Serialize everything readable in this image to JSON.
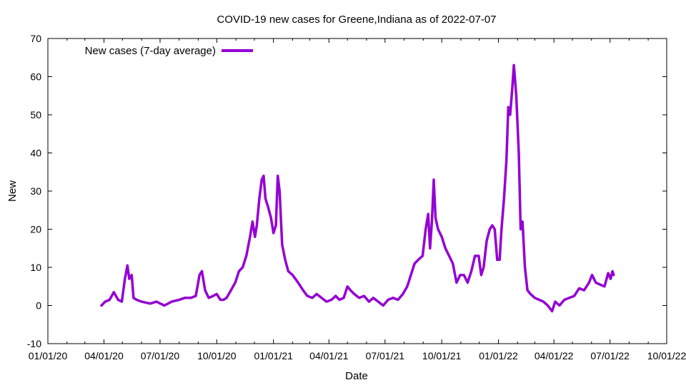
{
  "chart_data": {
    "type": "line",
    "title": "COVID-19 new cases for Greene,Indiana as of 2022-07-07",
    "xlabel": "Date",
    "ylabel": "New",
    "ylim": [
      -10,
      70
    ],
    "yticks": [
      -10,
      0,
      10,
      20,
      30,
      40,
      50,
      60,
      70
    ],
    "xticks": [
      "01/01/20",
      "04/01/20",
      "07/01/20",
      "10/01/20",
      "01/01/21",
      "04/01/21",
      "07/01/21",
      "10/01/21",
      "01/01/22",
      "04/01/22",
      "07/01/22",
      "10/01/22"
    ],
    "legend_position": "top-left",
    "series": [
      {
        "name": "New cases (7-day average)",
        "color": "#9400d3",
        "points": [
          [
            "2020-03-28",
            0
          ],
          [
            "2020-04-03",
            1
          ],
          [
            "2020-04-10",
            1.5
          ],
          [
            "2020-04-17",
            3.5
          ],
          [
            "2020-04-24",
            1.5
          ],
          [
            "2020-04-30",
            1
          ],
          [
            "2020-05-05",
            7
          ],
          [
            "2020-05-09",
            10.5
          ],
          [
            "2020-05-12",
            7
          ],
          [
            "2020-05-16",
            8
          ],
          [
            "2020-05-19",
            2
          ],
          [
            "2020-05-24",
            1.5
          ],
          [
            "2020-06-01",
            1
          ],
          [
            "2020-06-15",
            0.5
          ],
          [
            "2020-06-25",
            1
          ],
          [
            "2020-07-08",
            0
          ],
          [
            "2020-07-20",
            1
          ],
          [
            "2020-08-01",
            1.5
          ],
          [
            "2020-08-10",
            2
          ],
          [
            "2020-08-20",
            2
          ],
          [
            "2020-08-28",
            2.5
          ],
          [
            "2020-09-03",
            8
          ],
          [
            "2020-09-07",
            9
          ],
          [
            "2020-09-12",
            4
          ],
          [
            "2020-09-18",
            2
          ],
          [
            "2020-09-25",
            2.5
          ],
          [
            "2020-10-01",
            3
          ],
          [
            "2020-10-07",
            1.5
          ],
          [
            "2020-10-12",
            1.5
          ],
          [
            "2020-10-17",
            2
          ],
          [
            "2020-10-24",
            4
          ],
          [
            "2020-10-31",
            6
          ],
          [
            "2020-11-06",
            9
          ],
          [
            "2020-11-12",
            10
          ],
          [
            "2020-11-18",
            13
          ],
          [
            "2020-11-24",
            18
          ],
          [
            "2020-11-28",
            22
          ],
          [
            "2020-12-02",
            18
          ],
          [
            "2020-12-05",
            21
          ],
          [
            "2020-12-09",
            28
          ],
          [
            "2020-12-13",
            33
          ],
          [
            "2020-12-16",
            34
          ],
          [
            "2020-12-19",
            28
          ],
          [
            "2020-12-23",
            26
          ],
          [
            "2020-12-28",
            23
          ],
          [
            "2021-01-01",
            19
          ],
          [
            "2021-01-05",
            21
          ],
          [
            "2021-01-08",
            34
          ],
          [
            "2021-01-11",
            30
          ],
          [
            "2021-01-15",
            16
          ],
          [
            "2021-01-20",
            12
          ],
          [
            "2021-01-25",
            9
          ],
          [
            "2021-02-01",
            8
          ],
          [
            "2021-02-10",
            6
          ],
          [
            "2021-02-18",
            4
          ],
          [
            "2021-02-25",
            2.5
          ],
          [
            "2021-03-05",
            2
          ],
          [
            "2021-03-12",
            3
          ],
          [
            "2021-03-20",
            2
          ],
          [
            "2021-03-28",
            1
          ],
          [
            "2021-04-05",
            1.5
          ],
          [
            "2021-04-12",
            2.5
          ],
          [
            "2021-04-18",
            1.5
          ],
          [
            "2021-04-25",
            2
          ],
          [
            "2021-05-01",
            5
          ],
          [
            "2021-05-06",
            4
          ],
          [
            "2021-05-12",
            3
          ],
          [
            "2021-05-20",
            2
          ],
          [
            "2021-05-28",
            2.5
          ],
          [
            "2021-06-05",
            1
          ],
          [
            "2021-06-12",
            2
          ],
          [
            "2021-06-20",
            1
          ],
          [
            "2021-06-28",
            0
          ],
          [
            "2021-07-06",
            1.5
          ],
          [
            "2021-07-14",
            2
          ],
          [
            "2021-07-22",
            1.5
          ],
          [
            "2021-07-30",
            3
          ],
          [
            "2021-08-06",
            5
          ],
          [
            "2021-08-12",
            8
          ],
          [
            "2021-08-18",
            11
          ],
          [
            "2021-08-24",
            12
          ],
          [
            "2021-08-31",
            13
          ],
          [
            "2021-09-05",
            20
          ],
          [
            "2021-09-09",
            24
          ],
          [
            "2021-09-12",
            15
          ],
          [
            "2021-09-15",
            22
          ],
          [
            "2021-09-18",
            33
          ],
          [
            "2021-09-21",
            23
          ],
          [
            "2021-09-25",
            20
          ],
          [
            "2021-10-01",
            18
          ],
          [
            "2021-10-07",
            15
          ],
          [
            "2021-10-13",
            13
          ],
          [
            "2021-10-19",
            11
          ],
          [
            "2021-10-25",
            6
          ],
          [
            "2021-10-31",
            8
          ],
          [
            "2021-11-06",
            8
          ],
          [
            "2021-11-12",
            6
          ],
          [
            "2021-11-18",
            9
          ],
          [
            "2021-11-24",
            13
          ],
          [
            "2021-11-30",
            13
          ],
          [
            "2021-12-04",
            8
          ],
          [
            "2021-12-08",
            10
          ],
          [
            "2021-12-13",
            17
          ],
          [
            "2021-12-18",
            20
          ],
          [
            "2021-12-22",
            21
          ],
          [
            "2021-12-26",
            20
          ],
          [
            "2021-12-30",
            12
          ],
          [
            "2022-01-03",
            12
          ],
          [
            "2022-01-06",
            20
          ],
          [
            "2022-01-10",
            28
          ],
          [
            "2022-01-14",
            38
          ],
          [
            "2022-01-17",
            52
          ],
          [
            "2022-01-20",
            50
          ],
          [
            "2022-01-23",
            56
          ],
          [
            "2022-01-26",
            63
          ],
          [
            "2022-01-30",
            55
          ],
          [
            "2022-02-03",
            40
          ],
          [
            "2022-02-06",
            20
          ],
          [
            "2022-02-09",
            22
          ],
          [
            "2022-02-13",
            10
          ],
          [
            "2022-02-17",
            4
          ],
          [
            "2022-02-22",
            3
          ],
          [
            "2022-03-01",
            2
          ],
          [
            "2022-03-08",
            1.5
          ],
          [
            "2022-03-15",
            1
          ],
          [
            "2022-03-22",
            0
          ],
          [
            "2022-03-29",
            -1.5
          ],
          [
            "2022-04-03",
            1
          ],
          [
            "2022-04-10",
            0
          ],
          [
            "2022-04-18",
            1.5
          ],
          [
            "2022-04-26",
            2
          ],
          [
            "2022-05-04",
            2.5
          ],
          [
            "2022-05-12",
            4.5
          ],
          [
            "2022-05-20",
            4
          ],
          [
            "2022-05-28",
            6
          ],
          [
            "2022-06-02",
            8
          ],
          [
            "2022-06-08",
            6
          ],
          [
            "2022-06-15",
            5.5
          ],
          [
            "2022-06-22",
            5
          ],
          [
            "2022-06-28",
            8.5
          ],
          [
            "2022-07-02",
            7
          ],
          [
            "2022-07-05",
            9
          ],
          [
            "2022-07-07",
            8
          ]
        ]
      }
    ]
  }
}
